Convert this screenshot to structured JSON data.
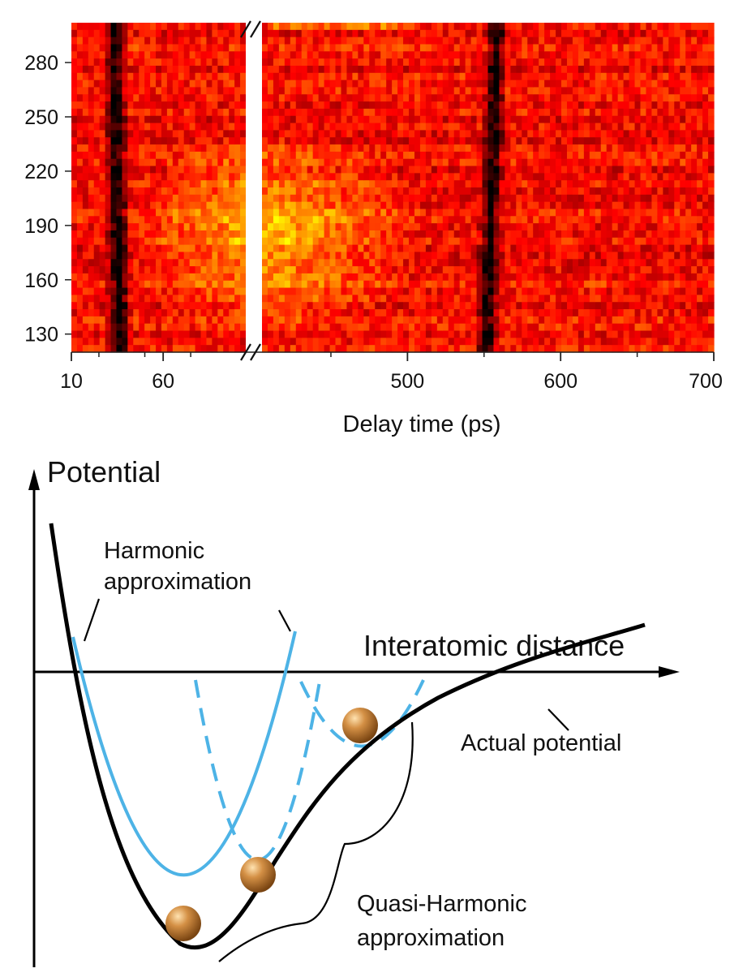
{
  "chart_data": [
    {
      "type": "heatmap",
      "title": "",
      "xlabel": "Delay time (ps)",
      "ylabel": "",
      "x_axis_break": true,
      "x_segments": [
        {
          "xlim": [
            10,
            105
          ],
          "tick_labels": [
            "10",
            "60"
          ]
        },
        {
          "xlim": [
            405,
            700
          ],
          "tick_labels": [
            "500",
            "600",
            "700"
          ]
        }
      ],
      "y_tick_labels": [
        "130",
        "160",
        "190",
        "220",
        "250",
        "280"
      ],
      "ylim": [
        120,
        302
      ],
      "colormap": [
        "#000000",
        "#ff0000",
        "#ffff00"
      ],
      "features": [
        {
          "description": "dark band",
          "x_center": 35
        },
        {
          "description": "dark band",
          "x_center": 555
        },
        {
          "description": "bright region",
          "x_range": [
            405,
            480
          ],
          "y_range": [
            145,
            225
          ]
        }
      ]
    },
    {
      "type": "diagram",
      "y_axis_label": "Potential",
      "x_axis_label": "Interatomic distance",
      "annotations": {
        "harmonic": "Harmonic approximation",
        "actual": "Actual potential",
        "quasi": "Quasi-Harmonic approximation"
      },
      "colors": {
        "actual": "#000000",
        "harmonic": "#4db3e6",
        "ball": "#c8813a"
      }
    }
  ]
}
